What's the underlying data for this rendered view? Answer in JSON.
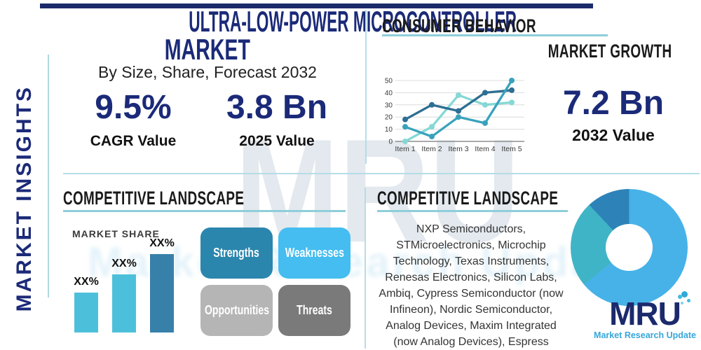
{
  "colors": {
    "navy": "#1b2a78",
    "top_bar_navy": "#1b2a6b",
    "heading_black": "#1a1a1a",
    "divider_teal": "#b5dde6",
    "underline_teal": "#8fcdda",
    "logo_navy": "#1b2a6b",
    "logo_teal": "#3fbce0",
    "tagline_blue": "#35a7da"
  },
  "left_rail": {
    "label": "MARKET INSIGHTS"
  },
  "header": {
    "title": "ULTRA-LOW-POWER MICROCONTROLLER MARKET",
    "title_line1": "ULTRA-LOW-POWER MICROCONTROLLER",
    "title_line2": "MARKET",
    "subtitle": "By Size, Share, Forecast 2032",
    "stats": [
      {
        "value": "9.5%",
        "label": "CAGR Value"
      },
      {
        "value": "3.8 Bn",
        "label": "2025 Value"
      }
    ]
  },
  "market_growth": {
    "section_title": "CONSUMER BEHAVIOR",
    "section_subtitle": "MARKET GROWTH",
    "stat": {
      "value": "7.2 Bn",
      "label": "2032 Value"
    }
  },
  "competitive_left": {
    "title": "COMPETITIVE LANDSCAPE",
    "chart_label": "MARKET SHARE",
    "swot": [
      {
        "label": "Strengths",
        "color": "#2b86ad",
        "text_color": "#ffffff"
      },
      {
        "label": "Weaknesses",
        "color": "#45bdf0",
        "text_color": "#ffffff"
      },
      {
        "label": "Opportunities",
        "color": "#b5b5b5",
        "text_color": "#ffffff"
      },
      {
        "label": "Threats",
        "color": "#7a7a7a",
        "text_color": "#ffffff"
      }
    ]
  },
  "competitive_right": {
    "title": "COMPETITIVE LANDSCAPE",
    "companies": "NXP Semiconductors, STMicroelectronics, Microchip Technology, Texas Instruments, Renesas Electronics, Silicon Labs, Ambiq, Cypress Semiconductor (now Infineon), Nordic Semiconductor, Analog Devices, Maxim Integrated (now Analog Devices), Espress",
    "companies_lines": [
      "NXP Semiconductors,",
      "STMicroelectronics, Microchip",
      "Technology, Texas Instruments,",
      "Renesas Electronics, Silicon Labs,",
      "Ambiq, Cypress Semiconductor (now",
      "Infineon), Nordic Semiconductor,",
      "Analog Devices, Maxim Integrated",
      "(now Analog Devices), Espress"
    ]
  },
  "brand": {
    "logo_text": "MRU",
    "tagline": "Market Research Update"
  },
  "watermark": {
    "big_text": "MRU",
    "band_text": "Market Research Update"
  },
  "chart_data": [
    {
      "type": "line",
      "title": "Consumer Behavior trend chart",
      "x": [
        "Item 1",
        "Item 2",
        "Item 3",
        "Item 4",
        "Item 5"
      ],
      "series": [
        {
          "name": "light-cyan-series",
          "color": "#85d8d5",
          "values": [
            0,
            12,
            38,
            30,
            32
          ]
        },
        {
          "name": "dark-blue-series",
          "color": "#2d6e93",
          "values": [
            18,
            30,
            25,
            40,
            42
          ]
        },
        {
          "name": "teal-series",
          "color": "#38a2bc",
          "values": [
            12,
            4,
            20,
            15,
            50
          ]
        }
      ],
      "ylim": [
        0,
        50
      ],
      "yticks": [
        0,
        10,
        20,
        30,
        40,
        50
      ],
      "grid": true,
      "legend": "none"
    },
    {
      "type": "bar",
      "title": "MARKET SHARE",
      "categories": [
        "XX%",
        "XX%",
        "XX%"
      ],
      "values": [
        57,
        83,
        112
      ],
      "value_note": "axis unlabeled; bar labels are XX% placeholders; values are relative heights",
      "colors": [
        "#4cc0da",
        "#4cc0da",
        "#3780aa"
      ]
    },
    {
      "type": "pie",
      "donut": true,
      "title": "",
      "slices": [
        {
          "name": "bright-blue-slice",
          "value": 64,
          "color": "#47b2e8"
        },
        {
          "name": "teal-slice",
          "value": 24,
          "color": "#3fb4c6"
        },
        {
          "name": "dark-blue-slice",
          "value": 12,
          "color": "#2d83b8"
        }
      ]
    }
  ]
}
